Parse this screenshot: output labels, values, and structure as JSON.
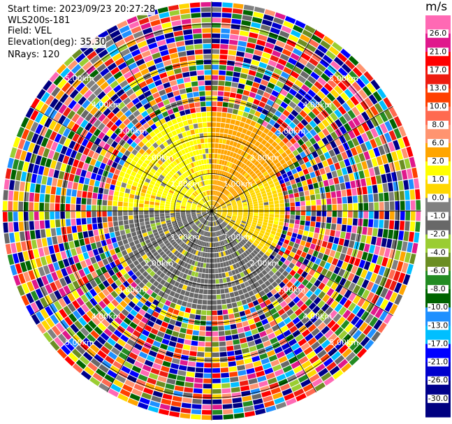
{
  "header": {
    "start_time": "Start time: 2023/09/23 20:27:28",
    "instrument": "WLS200s-181",
    "field": "Field: VEL",
    "elevation": "Elevation(deg): 35.30",
    "nrays": "NRays: 120"
  },
  "chart_data": {
    "type": "heatmap",
    "projection": "polar-ppi",
    "field": "VEL",
    "units": "m/s",
    "nrays": 120,
    "elevation_deg": 35.3,
    "range_rings_km": [
      1.0,
      2.0,
      3.0,
      4.0,
      5.0
    ],
    "ring_labels": [
      "1.00km",
      "2.00km",
      "3.00km",
      "4.00km",
      "5.00km"
    ],
    "max_range_km": 5.6,
    "colorbar": {
      "label": "m/s",
      "ticks": [
        26.0,
        21.0,
        17.0,
        13.0,
        10.0,
        8.0,
        6.0,
        2.0,
        1.0,
        0.0,
        -1.0,
        -2.0,
        -4.0,
        -6.0,
        -8.0,
        -10.0,
        -13.0,
        -17.0,
        -21.0,
        -26.0,
        -30.0
      ],
      "tick_labels": [
        "26.0",
        "21.0",
        "17.0",
        "13.0",
        "10.0",
        "8.0",
        "6.0",
        "2.0",
        "1.0",
        "0.0",
        "-1.0",
        "-2.0",
        "-4.0",
        "-6.0",
        "-8.0",
        "-10.0",
        "-13.0",
        "-17.0",
        "-21.0",
        "-26.0",
        "-30.0"
      ],
      "colors": [
        "#ff69b4",
        "#e0188c",
        "#ff0000",
        "#ee1c10",
        "#ff4000",
        "#ff6a50",
        "#ff9470",
        "#ffa500",
        "#ffff00",
        "#ffd700",
        "#808080",
        "#686868",
        "#9acd32",
        "#6b8e23",
        "#228b22",
        "#006400",
        "#1e90ff",
        "#00bfff",
        "#0000ff",
        "#0000cd",
        "#00008b",
        "#000080"
      ]
    },
    "regions": [
      {
        "sector_deg": [
          270,
          360
        ],
        "range_km": [
          0.0,
          2.7
        ],
        "dominant_vel_ms": 1.0
      },
      {
        "sector_deg": [
          0,
          60
        ],
        "range_km": [
          0.0,
          2.7
        ],
        "dominant_vel_ms": 2.0
      },
      {
        "sector_deg": [
          60,
          130
        ],
        "range_km": [
          0.0,
          2.0
        ],
        "dominant_vel_ms": 0.0
      },
      {
        "sector_deg": [
          130,
          270
        ],
        "range_km": [
          0.0,
          2.7
        ],
        "dominant_vel_ms": -2.0
      },
      {
        "sector_deg": [
          160,
          220
        ],
        "range_km": [
          0.0,
          1.6
        ],
        "dominant_vel_ms": -6.0
      },
      {
        "sector_deg": [
          0,
          360
        ],
        "range_km": [
          2.7,
          5.6
        ],
        "dominant_vel_ms": "noise"
      }
    ]
  }
}
